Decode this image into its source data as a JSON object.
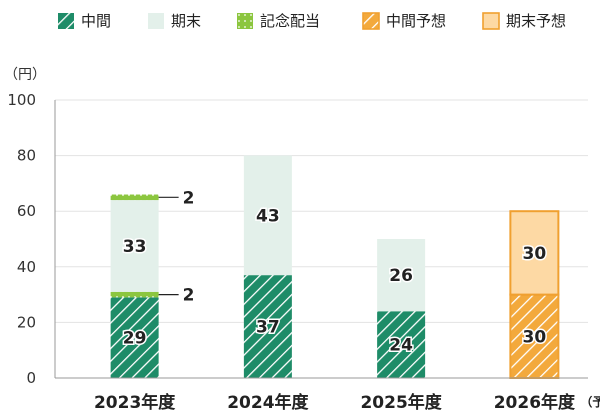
{
  "chart_data": {
    "type": "bar",
    "stacked": true,
    "unit_label": "（円）",
    "ylim": [
      0,
      100
    ],
    "yticks": [
      0,
      20,
      40,
      60,
      80,
      100
    ],
    "grid": true,
    "legend_position": "top",
    "categories": [
      {
        "label": "2023年度",
        "note": ""
      },
      {
        "label": "2024年度",
        "note": ""
      },
      {
        "label": "2025年度",
        "note": ""
      },
      {
        "label": "2026年度",
        "note": "（予定）"
      }
    ],
    "series": [
      {
        "key": "interim",
        "name": "中間",
        "values": [
          29,
          37,
          24,
          null
        ]
      },
      {
        "key": "interim_cmm",
        "name": "記念配当",
        "values": [
          2,
          null,
          null,
          null
        ]
      },
      {
        "key": "yearend",
        "name": "期末",
        "values": [
          33,
          43,
          26,
          null
        ]
      },
      {
        "key": "yearend_cmm",
        "name": "記念配当",
        "values": [
          2,
          null,
          null,
          null
        ]
      },
      {
        "key": "interim_fc",
        "name": "中間予想",
        "values": [
          null,
          null,
          null,
          30
        ]
      },
      {
        "key": "yearend_fc",
        "name": "期末予想",
        "values": [
          null,
          null,
          null,
          30
        ]
      }
    ],
    "legend": [
      {
        "key": "interim",
        "label": "中間"
      },
      {
        "key": "yearend",
        "label": "期末"
      },
      {
        "key": "commem",
        "label": "記念配当"
      },
      {
        "key": "interim_fc",
        "label": "中間予想"
      },
      {
        "key": "yearend_fc",
        "label": "期末予想"
      }
    ]
  },
  "colors": {
    "interim": "#1e8c68",
    "yearend": "#e3f0ea",
    "commem": "#8cc63f",
    "interim_fc": "#f3a93c",
    "yearend_fc": "#fdd9a4",
    "forecast_border": "#f0a030",
    "grid": "#e3e3e3",
    "axis": "#999999"
  }
}
